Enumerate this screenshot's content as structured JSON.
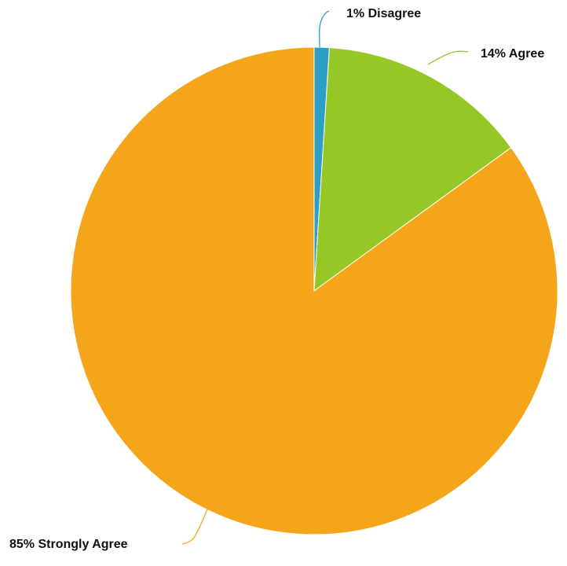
{
  "chart_data": {
    "type": "pie",
    "title": "",
    "start_angle_deg": 0,
    "direction": "clockwise",
    "slices": [
      {
        "label": "1% Disagree",
        "category": "Disagree",
        "value": 1,
        "color": "#2E9FC4"
      },
      {
        "label": "14% Agree",
        "category": "Agree",
        "value": 14,
        "color": "#95C826"
      },
      {
        "label": "85% Strongly Agree",
        "category": "Strongly Agree",
        "value": 85,
        "color": "#F5A51A"
      }
    ]
  }
}
